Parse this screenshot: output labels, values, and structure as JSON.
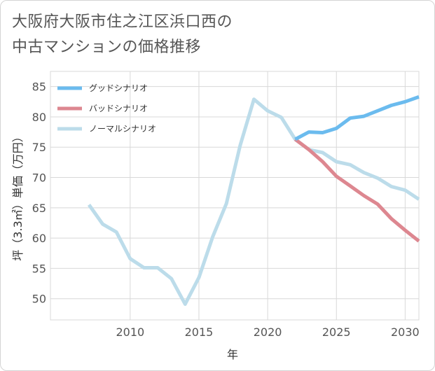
{
  "title": "大阪府大阪市住之江区浜口西の\n中古マンションの価格推移",
  "chart_data": {
    "type": "line",
    "xlabel": "年",
    "ylabel": "坪（3.3㎡）単価（万円）",
    "xlim": [
      2004.2,
      2031
    ],
    "ylim": [
      46.5,
      87.5
    ],
    "xticks": [
      2010,
      2015,
      2020,
      2025,
      2030
    ],
    "yticks": [
      50,
      55,
      60,
      65,
      70,
      75,
      80,
      85
    ],
    "grid": true,
    "legend_position": "top-left",
    "series": [
      {
        "name": "グッドシナリオ",
        "color": "#6bbbee",
        "x": [
          2022,
          2023,
          2024,
          2025,
          2026,
          2027,
          2028,
          2029,
          2030,
          2031
        ],
        "y": [
          76.3,
          77.5,
          77.4,
          78.1,
          79.8,
          80.1,
          81.0,
          81.9,
          82.5,
          83.3
        ]
      },
      {
        "name": "バッドシナリオ",
        "color": "#dd8790",
        "x": [
          2022,
          2023,
          2024,
          2025,
          2026,
          2027,
          2028,
          2029,
          2030,
          2031
        ],
        "y": [
          76.3,
          74.6,
          72.6,
          70.2,
          68.6,
          67.0,
          65.6,
          63.2,
          61.3,
          59.5
        ]
      },
      {
        "name": "ノーマルシナリオ",
        "color": "#bcdcea",
        "x": [
          2007,
          2008,
          2009,
          2010,
          2011,
          2012,
          2013,
          2014,
          2015,
          2016,
          2017,
          2018,
          2019,
          2020,
          2021,
          2022,
          2023,
          2024,
          2025,
          2026,
          2027,
          2028,
          2029,
          2030,
          2031
        ],
        "y": [
          65.5,
          62.3,
          61.0,
          56.6,
          55.1,
          55.1,
          53.3,
          49.1,
          53.5,
          60.2,
          65.7,
          75.3,
          82.9,
          81.0,
          79.9,
          76.3,
          74.6,
          74.1,
          72.6,
          72.1,
          70.8,
          69.9,
          68.5,
          67.9,
          66.4
        ]
      }
    ]
  }
}
